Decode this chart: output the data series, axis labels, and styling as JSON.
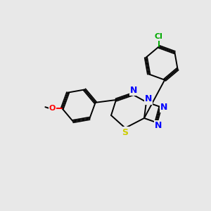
{
  "background_color": "#e8e8e8",
  "bond_color": "#000000",
  "double_bond_color": "#000000",
  "atom_colors": {
    "N": "#0000ff",
    "S": "#cccc00",
    "O": "#ff0000",
    "Cl": "#00aa00",
    "C": "#000000"
  },
  "font_size_atoms": 9,
  "font_size_small": 8
}
